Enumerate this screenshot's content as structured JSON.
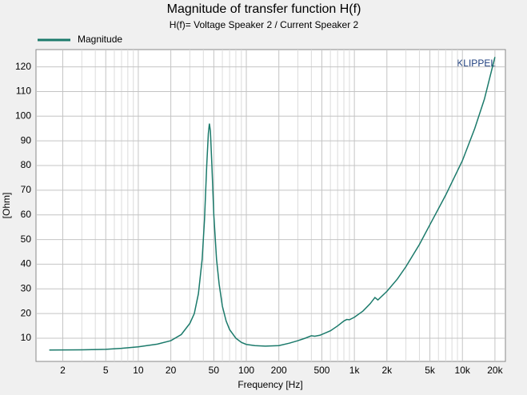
{
  "chart_data": {
    "type": "line",
    "title": "Magnitude of transfer function H(f)",
    "subtitle": "H(f)= Voltage Speaker 2 / Current Speaker 2",
    "x_label": "Frequency [Hz]",
    "y_label": "[Ohm]",
    "annotation": "KLIPPEL",
    "xscale": "log",
    "grid": true,
    "legend": "top-left",
    "xlim": [
      1.13,
      25000
    ],
    "ylim": [
      0.6,
      127
    ],
    "xticks": [
      2,
      5,
      10,
      20,
      50,
      100,
      200,
      500,
      {
        "value": 1000,
        "label": "1k"
      },
      {
        "value": 2000,
        "label": "2k"
      },
      {
        "value": 5000,
        "label": "5k"
      },
      {
        "value": 10000,
        "label": "10k"
      },
      {
        "value": 20000,
        "label": "20k"
      }
    ],
    "xminor": [
      3,
      4,
      6,
      7,
      8,
      9,
      30,
      40,
      60,
      70,
      80,
      90,
      300,
      400,
      600,
      700,
      800,
      900,
      3000,
      4000,
      6000,
      7000,
      8000,
      9000
    ],
    "yticks": [
      10,
      20,
      30,
      40,
      50,
      60,
      70,
      80,
      90,
      100,
      110,
      120
    ],
    "x": [
      1.5,
      3,
      5,
      7,
      10,
      15,
      20,
      25,
      30,
      33,
      36,
      39,
      41,
      43,
      44.5,
      45.5,
      46.5,
      48,
      50,
      53,
      56,
      60,
      65,
      70,
      80,
      90,
      100,
      120,
      150,
      200,
      250,
      300,
      350,
      400,
      430,
      480,
      600,
      700,
      800,
      850,
      900,
      1000,
      1200,
      1400,
      1550,
      1650,
      2000,
      2500,
      3000,
      4000,
      5000,
      7000,
      10000,
      13000,
      16000,
      20000
    ],
    "series": [
      {
        "name": "Magnitude",
        "color": "#1b7a6b",
        "values": [
          5.2,
          5.3,
          5.5,
          5.9,
          6.5,
          7.6,
          9,
          11.5,
          16,
          20,
          28,
          42,
          58,
          80,
          93,
          97,
          94,
          80,
          60,
          42,
          32,
          23,
          17,
          13.5,
          10,
          8.3,
          7.5,
          7,
          6.8,
          7,
          8,
          9,
          10,
          11,
          10.8,
          11.2,
          13,
          15,
          17,
          17.6,
          17.5,
          18.5,
          21,
          24,
          26.5,
          25.5,
          29,
          34,
          39,
          48,
          56,
          68,
          82,
          95,
          107,
          124
        ]
      }
    ]
  }
}
